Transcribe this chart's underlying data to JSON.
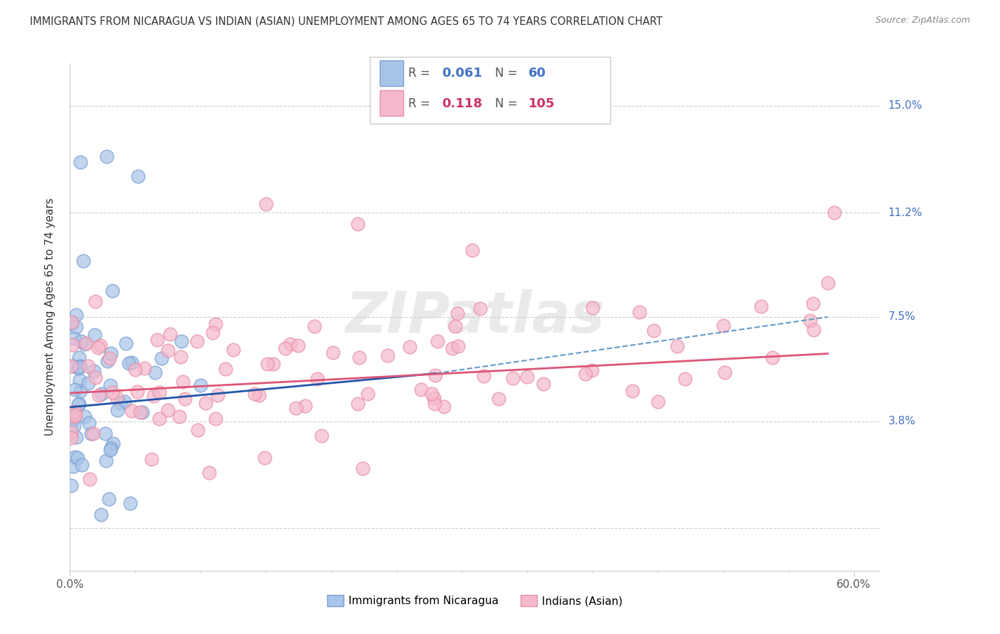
{
  "title": "IMMIGRANTS FROM NICARAGUA VS INDIAN (ASIAN) UNEMPLOYMENT AMONG AGES 65 TO 74 YEARS CORRELATION CHART",
  "source": "Source: ZipAtlas.com",
  "ylabel": "Unemployment Among Ages 65 to 74 years",
  "xlim": [
    0.0,
    62.0
  ],
  "ylim": [
    -1.5,
    16.5
  ],
  "ytick_vals": [
    0.0,
    3.8,
    7.5,
    11.2,
    15.0
  ],
  "ytick_labels": [
    "",
    "3.8%",
    "7.5%",
    "11.2%",
    "15.0%"
  ],
  "blue_scatter_color": "#a8c4e8",
  "blue_scatter_edge": "#7a9fd4",
  "pink_scatter_color": "#f5b8cb",
  "pink_scatter_edge": "#e890a8",
  "blue_solid_line_color": "#2255aa",
  "blue_dashed_line_color": "#6699cc",
  "pink_line_color": "#dd5577",
  "legend_R1": "0.061",
  "legend_N1": "60",
  "legend_R2": "0.118",
  "legend_N2": "105",
  "legend_label1": "Immigrants from Nicaragua",
  "legend_label2": "Indians (Asian)",
  "text_dark": "#333333",
  "text_blue": "#4472c4",
  "text_pink": "#cc3366",
  "grid_color": "#cccccc",
  "watermark": "ZIPatlas"
}
